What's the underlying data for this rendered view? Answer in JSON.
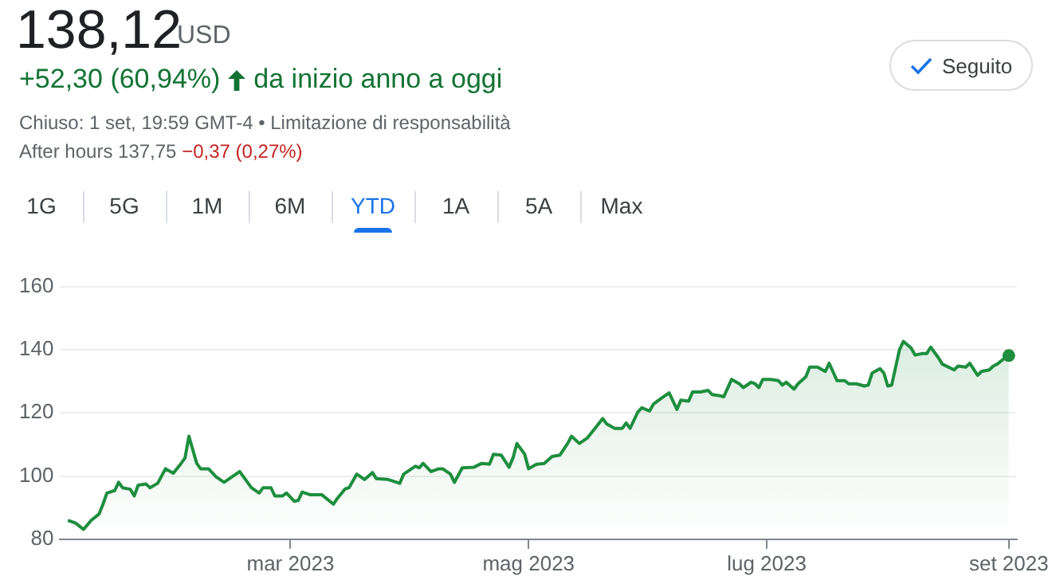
{
  "chart_data": {
    "type": "area",
    "title": "138,12",
    "subtitle": "+52,30 (60,94%)",
    "annotations": [
      "USD",
      "da inizio anno a oggi",
      "Chiuso: 1 set, 19:59 GMT-4 • Limitazione di responsabilità",
      "After hours 137,75",
      "−0,37 (0,27%)",
      "1G",
      "5G",
      "1M",
      "6M",
      "YTD",
      "1A",
      "5A",
      "Max",
      "Seguito"
    ],
    "x": [
      "2023-01-03",
      "2023-01-05",
      "2023-01-07",
      "2023-01-09",
      "2023-01-11",
      "2023-01-12",
      "2023-01-13",
      "2023-01-15",
      "2023-01-16",
      "2023-01-17",
      "2023-01-19",
      "2023-01-20",
      "2023-01-21",
      "2023-01-23",
      "2023-01-24",
      "2023-01-26",
      "2023-01-28",
      "2023-01-30",
      "2023-02-01",
      "2023-02-02",
      "2023-02-03",
      "2023-02-05",
      "2023-02-06",
      "2023-02-08",
      "2023-02-10",
      "2023-02-12",
      "2023-02-14",
      "2023-02-16",
      "2023-02-18",
      "2023-02-19",
      "2023-02-21",
      "2023-02-22",
      "2023-02-24",
      "2023-02-25",
      "2023-02-27",
      "2023-02-28",
      "2023-03-02",
      "2023-03-03",
      "2023-03-04",
      "2023-03-06",
      "2023-03-07",
      "2023-03-09",
      "2023-03-12",
      "2023-03-13",
      "2023-03-15",
      "2023-03-16",
      "2023-03-18",
      "2023-03-20",
      "2023-03-22",
      "2023-03-23",
      "2023-03-26",
      "2023-03-29",
      "2023-03-30",
      "2023-04-02",
      "2023-04-03",
      "2023-04-04",
      "2023-04-06",
      "2023-04-08",
      "2023-04-09",
      "2023-04-11",
      "2023-04-12",
      "2023-04-14",
      "2023-04-17",
      "2023-04-19",
      "2023-04-21",
      "2023-04-22",
      "2023-04-24",
      "2023-04-26",
      "2023-04-27",
      "2023-04-28",
      "2023-04-30",
      "2023-05-01",
      "2023-05-03",
      "2023-05-05",
      "2023-05-07",
      "2023-05-09",
      "2023-05-11",
      "2023-05-12",
      "2023-05-14",
      "2023-05-16",
      "2023-05-18",
      "2023-05-20",
      "2023-05-21",
      "2023-05-23",
      "2023-05-25",
      "2023-05-26",
      "2023-05-27",
      "2023-05-29",
      "2023-05-30",
      "2023-06-01",
      "2023-06-02",
      "2023-06-04",
      "2023-06-06",
      "2023-06-08",
      "2023-06-09",
      "2023-06-11",
      "2023-06-12",
      "2023-06-14",
      "2023-06-16",
      "2023-06-17",
      "2023-06-19",
      "2023-06-20",
      "2023-06-22",
      "2023-06-24",
      "2023-06-25",
      "2023-06-27",
      "2023-06-28",
      "2023-06-29",
      "2023-06-30",
      "2023-07-02",
      "2023-07-04",
      "2023-07-05",
      "2023-07-06",
      "2023-07-08",
      "2023-07-09",
      "2023-07-11",
      "2023-07-12",
      "2023-07-14",
      "2023-07-16",
      "2023-07-17",
      "2023-07-19",
      "2023-07-21",
      "2023-07-22",
      "2023-07-24",
      "2023-07-26",
      "2023-07-27",
      "2023-07-28",
      "2023-07-30",
      "2023-07-31",
      "2023-08-01",
      "2023-08-02",
      "2023-08-04",
      "2023-08-05",
      "2023-08-07",
      "2023-08-08",
      "2023-08-10",
      "2023-08-11",
      "2023-08-12",
      "2023-08-14",
      "2023-08-15",
      "2023-08-18",
      "2023-08-19",
      "2023-08-21",
      "2023-08-22",
      "2023-08-24",
      "2023-08-25",
      "2023-08-27",
      "2023-08-28",
      "2023-08-29",
      "2023-08-31",
      "2023-09-01"
    ],
    "series": [
      {
        "color": "#1e8e3e",
        "values": [
          86.0,
          85.1,
          83.1,
          86.0,
          88.0,
          91.1,
          94.6,
          95.4,
          98.0,
          96.3,
          95.8,
          93.7,
          97.1,
          97.5,
          96.3,
          97.7,
          102.3,
          100.9,
          104.0,
          105.7,
          112.6,
          104.0,
          102.3,
          102.3,
          99.7,
          98.0,
          99.7,
          101.4,
          98.0,
          96.3,
          94.6,
          96.3,
          96.3,
          93.7,
          93.7,
          94.6,
          92.0,
          92.3,
          94.9,
          94.1,
          94.1,
          94.1,
          91.1,
          92.9,
          95.9,
          96.3,
          100.6,
          98.9,
          101.1,
          99.2,
          98.9,
          97.7,
          100.6,
          103.1,
          102.6,
          104.0,
          101.4,
          102.3,
          102.3,
          100.6,
          98.0,
          102.6,
          102.8,
          104.0,
          103.8,
          106.9,
          106.6,
          102.8,
          105.7,
          110.3,
          106.9,
          102.3,
          103.7,
          104.0,
          106.2,
          106.6,
          110.3,
          112.6,
          110.3,
          112.0,
          115.1,
          118.2,
          116.5,
          115.1,
          115.1,
          116.8,
          115.1,
          120.3,
          121.6,
          120.6,
          122.8,
          124.6,
          126.3,
          121.1,
          124.0,
          123.7,
          126.6,
          126.6,
          127.1,
          125.8,
          125.4,
          125.1,
          130.6,
          129.2,
          128.0,
          129.7,
          129.2,
          128.0,
          130.6,
          130.6,
          130.2,
          128.8,
          129.7,
          127.5,
          129.2,
          131.4,
          134.5,
          134.5,
          133.1,
          135.7,
          130.2,
          130.2,
          129.2,
          129.2,
          128.5,
          128.8,
          132.6,
          134.0,
          132.6,
          128.5,
          128.8,
          140.0,
          142.6,
          140.5,
          138.3,
          138.8,
          138.8,
          140.8,
          137.4,
          135.4,
          133.6,
          134.8,
          134.5,
          135.7,
          131.9,
          133.1,
          133.6,
          134.8,
          135.4,
          137.4,
          138.12
        ]
      }
    ],
    "xlim": [
      "2023-01-01",
      "2023-09-03"
    ],
    "xticks": [
      {
        "value": "2023-03-01",
        "label": "mar 2023"
      },
      {
        "value": "2023-05-01",
        "label": "mag 2023"
      },
      {
        "value": "2023-07-01",
        "label": "lug 2023"
      },
      {
        "value": "2023-09-01",
        "label": "set 2023"
      }
    ],
    "ylim": [
      80,
      160
    ],
    "yticks": [
      80,
      100,
      120,
      140,
      160
    ],
    "grid": "y",
    "legend": false
  }
}
